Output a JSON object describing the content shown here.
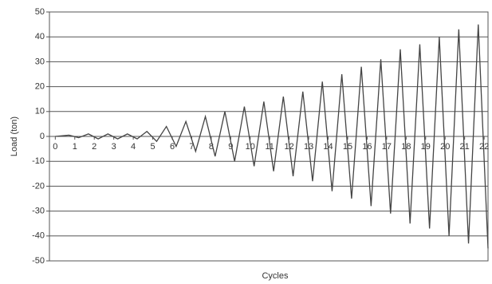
{
  "chart_data": {
    "type": "line",
    "x_label": "Cycles",
    "y_label": "Load (ton)",
    "x": [
      0,
      0.7,
      1.2,
      1.7,
      2.2,
      2.7,
      3.2,
      3.7,
      4.2,
      4.7,
      5.2,
      5.7,
      6.2,
      6.7,
      7.2,
      7.7,
      8.2,
      8.7,
      9.2,
      9.7,
      10.2,
      10.7,
      11.2,
      11.7,
      12.2,
      12.7,
      13.2,
      13.7,
      14.2,
      14.7,
      15.2,
      15.7,
      16.2,
      16.7,
      17.2,
      17.7,
      18.2,
      18.7,
      19.2,
      19.7,
      20.2,
      20.7,
      21.2,
      21.7,
      22.2
    ],
    "series": [
      {
        "color": "#444444",
        "values": [
          0,
          0.5,
          -0.5,
          1,
          -1,
          1,
          -1,
          1,
          -1,
          2,
          -2,
          4,
          -4,
          6,
          -6,
          8,
          -8,
          10,
          -10,
          12,
          -12,
          14,
          -14,
          16,
          -16,
          18,
          -18,
          22,
          -22,
          25,
          -25,
          28,
          -28,
          31,
          -31,
          35,
          -35,
          37,
          -37,
          40,
          -40,
          43,
          -43,
          45,
          -45
        ]
      }
    ],
    "xlim": [
      -0.3,
      22.2
    ],
    "xticks": [
      0,
      1,
      2,
      3,
      4,
      5,
      6,
      7,
      8,
      9,
      10,
      11,
      12,
      13,
      14,
      15,
      16,
      17,
      18,
      19,
      20,
      21,
      22
    ],
    "ylim": [
      -50,
      50
    ],
    "yticks": [
      -50,
      -40,
      -30,
      -20,
      -10,
      0,
      10,
      20,
      30,
      40,
      50
    ],
    "grid": true
  }
}
